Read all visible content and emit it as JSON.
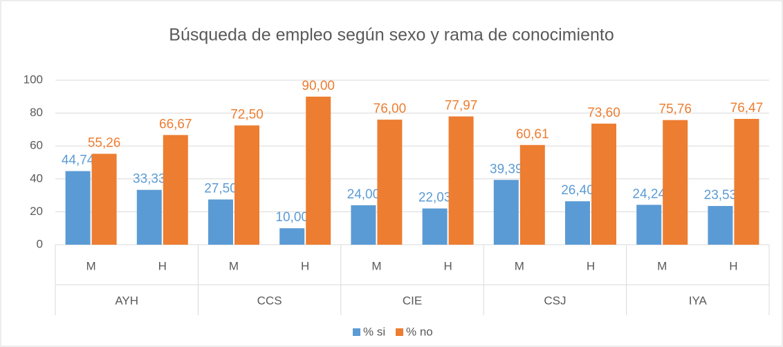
{
  "chart_data": {
    "type": "bar",
    "title": "Búsqueda de empleo según sexo y rama de conocimiento",
    "categories": [
      "M",
      "H",
      "M",
      "H",
      "M",
      "H",
      "M",
      "H",
      "M",
      "H"
    ],
    "groups": [
      "AYH",
      "CCS",
      "CIE",
      "CSJ",
      "IYA"
    ],
    "series": [
      {
        "name": "% si",
        "color": "#5b9bd5",
        "values": [
          44.74,
          33.33,
          27.5,
          10,
          24,
          22.03,
          39.39,
          26.4,
          24.24,
          23.53
        ],
        "value_labels": [
          "44,74",
          "33,33",
          "27,50",
          "10,00",
          "24,00",
          "22,03",
          "39,39",
          "26,40",
          "24,24",
          "23,53"
        ]
      },
      {
        "name": "% no",
        "color": "#ed7d31",
        "values": [
          55.26,
          66.67,
          72.5,
          90,
          76,
          77.97,
          60.61,
          73.6,
          75.76,
          76.47
        ],
        "value_labels": [
          "55,26",
          "66,67",
          "72,50",
          "90,00",
          "76,00",
          "77,97",
          "60,61",
          "73,60",
          "75,76",
          "76,47"
        ]
      }
    ],
    "ylim": [
      0,
      100
    ],
    "yticks": [
      0,
      20,
      40,
      60,
      80,
      100
    ],
    "grid": true,
    "legend": "bottom"
  }
}
